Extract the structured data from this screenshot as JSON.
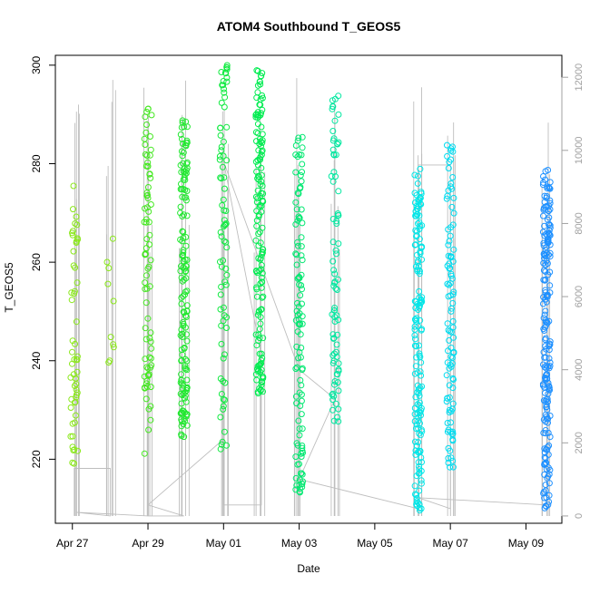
{
  "chart_data": {
    "type": "scatter",
    "title": "ATOM4 Southbound T_GEOS5",
    "xlabel": "Date",
    "ylabel": "T_GEOS5",
    "x_tick_labels": [
      "Apr 27",
      "Apr 29",
      "May 01",
      "May 03",
      "May 05",
      "May 07",
      "May 09"
    ],
    "x_range_days": [
      -0.45,
      12.95
    ],
    "y_ticks": [
      220,
      240,
      260,
      280,
      300
    ],
    "ylim": [
      207,
      302
    ],
    "y2_ticks": [
      0,
      2000,
      4000,
      6000,
      8000,
      10000,
      12000
    ],
    "y2lim": [
      -200,
      12600
    ],
    "grid": false,
    "legend": "none",
    "colors": {
      "altitude_line": "#bebebe",
      "gradient_start": "#8ae81a",
      "gradient_mid": "#00ee55",
      "gradient_cyan": "#00e8f0",
      "gradient_end": "#1e90ff"
    },
    "series": [
      {
        "type": "points",
        "description_of_groups": "scatter clusters by flight",
        "groups": [
          {
            "day": 0.05,
            "y_min": 218,
            "y_max": 276,
            "color": "#8ae81a",
            "n": 55
          },
          {
            "day": 1.0,
            "y_min": 238,
            "y_max": 267,
            "color": "#8ae81a",
            "n": 10
          },
          {
            "day": 2.0,
            "y_min": 221,
            "y_max": 292,
            "color": "#44e820",
            "n": 80
          },
          {
            "day": 2.95,
            "y_min": 224,
            "y_max": 289,
            "color": "#22e830",
            "n": 150
          },
          {
            "day": 4.0,
            "y_min": 222,
            "y_max": 300,
            "color": "#10ea40",
            "n": 80
          },
          {
            "day": 4.95,
            "y_min": 233,
            "y_max": 300,
            "color": "#00ec50",
            "n": 150
          },
          {
            "day": 6.0,
            "y_min": 213,
            "y_max": 286,
            "color": "#00e870",
            "n": 110
          },
          {
            "day": 6.95,
            "y_min": 226,
            "y_max": 294,
            "color": "#00e8a0",
            "n": 80
          },
          {
            "day": 9.15,
            "y_min": 209,
            "y_max": 279,
            "color": "#00e6e8",
            "n": 160
          },
          {
            "day": 10.0,
            "y_min": 217,
            "y_max": 284,
            "color": "#00dcf0",
            "n": 100
          },
          {
            "day": 12.55,
            "y_min": 210,
            "y_max": 279,
            "color": "#1e90ff",
            "n": 200
          }
        ]
      }
    ]
  }
}
